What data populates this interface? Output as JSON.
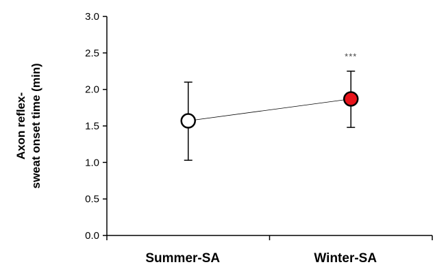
{
  "chart_data": {
    "type": "line",
    "categories": [
      "Summer-SA",
      "Winter-SA"
    ],
    "series": [
      {
        "values": [
          1.57,
          1.87
        ],
        "error_low": [
          1.03,
          1.48
        ],
        "error_high": [
          2.1,
          2.25
        ],
        "marker_fill": [
          "#ffffff",
          "#e8141b"
        ]
      }
    ],
    "ylabel_lines": [
      "Axon reflex-",
      "sweat onset time (min)"
    ],
    "ylim": [
      0.0,
      3.0
    ],
    "yticks": [
      "0.0",
      "0.5",
      "1.0",
      "1.5",
      "2.0",
      "2.5",
      "3.0"
    ],
    "annotation": {
      "text": "***",
      "category": "Winter-SA"
    },
    "grid": false,
    "legend": "none"
  }
}
